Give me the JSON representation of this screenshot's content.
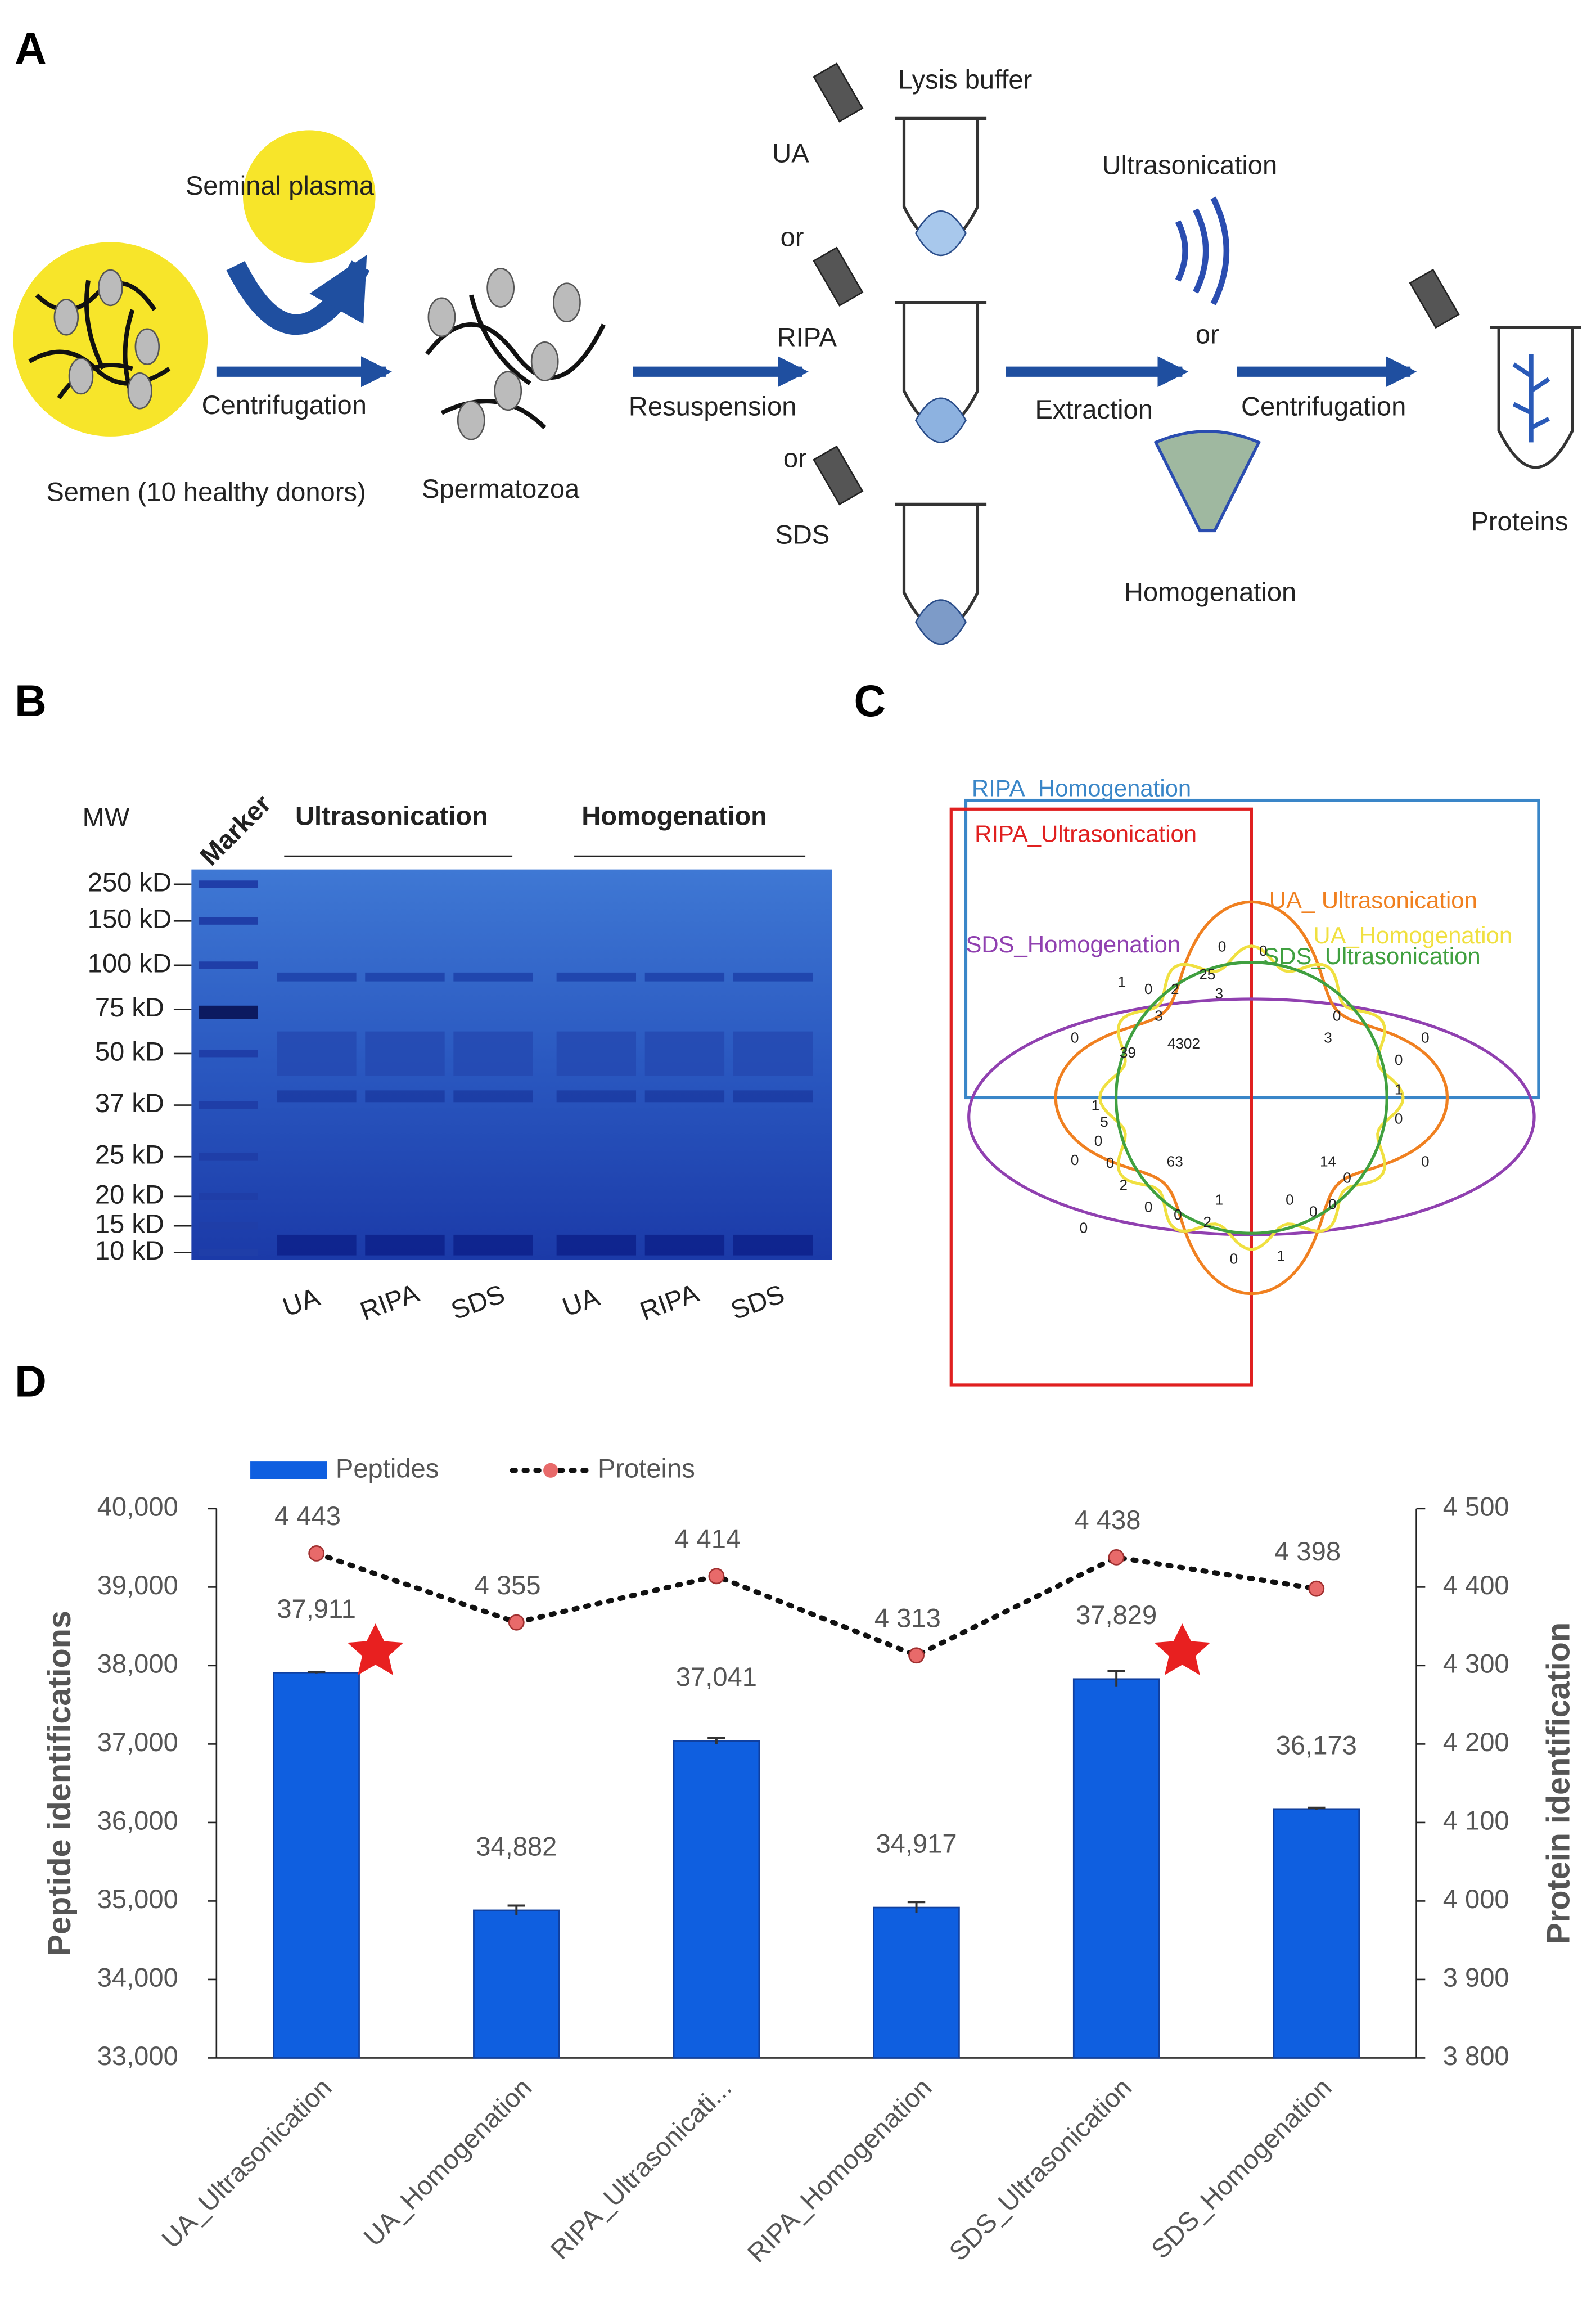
{
  "panel_a": {
    "letter": "A",
    "labels": [
      "Lysis buffer",
      "UA",
      "or",
      "RIPA",
      "or",
      "SDS",
      "Ultrasonication",
      "or",
      "Seminal plasma",
      "Centrifugation",
      "Resuspension",
      "Extraction",
      "Centrifugation",
      "Semen (10 healthy donors)",
      "Spermatozoa",
      "Homogenation",
      "Proteins"
    ]
  },
  "panel_b": {
    "letter": "B",
    "mw": "MW",
    "marker": "Marker",
    "groups": [
      "Ultrasonication",
      "Homogenation"
    ],
    "weights": [
      "250 kD",
      "150 kD",
      "100 kD",
      "75 kD",
      "50 kD",
      "37 kD",
      "25 kD",
      "20 kD",
      "15 kD",
      "10 kD"
    ],
    "lanes": [
      "UA",
      "RIPA",
      "SDS",
      "UA",
      "RIPA",
      "SDS"
    ]
  },
  "panel_c": {
    "letter": "C",
    "sets": [
      "RIPA_Homogenation",
      "RIPA_Ultrasonication",
      "UA_ Ultrasonication",
      "UA_Homogenation",
      "SDS_Ultrasonication",
      "SDS_Homogenation"
    ],
    "numbers": [
      "0",
      "0",
      "25",
      "1",
      "0",
      "2",
      "3",
      "3",
      "4302",
      "39",
      "0",
      "3",
      "0",
      "1",
      "5",
      "0",
      "0",
      "2",
      "63",
      "0",
      "14",
      "0",
      "0",
      "1",
      "0",
      "0",
      "0",
      "2",
      "1",
      "0",
      "1",
      "0",
      "0",
      "0",
      "0",
      "0",
      "0"
    ]
  },
  "panel_d": {
    "letter": "D"
  },
  "chart_data": {
    "type": "bar_line",
    "categories": [
      "UA_Ultrasonication",
      "UA_Homogenation",
      "RIPA_Ultrasonicati...",
      "RIPA_Homogenation",
      "SDS_Ultrasonication",
      "SDS_Homogenation"
    ],
    "series": [
      {
        "name": "Peptides",
        "color": "#0f5fe0",
        "values": [
          37911,
          34882,
          37041,
          34917,
          37829,
          36173
        ],
        "value_labels": [
          "37,911",
          "34,882",
          "37,041",
          "34,917",
          "37,829",
          "36,173"
        ],
        "errors": [
          10,
          60,
          40,
          70,
          100,
          15
        ]
      },
      {
        "name": "Proteins",
        "color": "#e86a6a",
        "axis": "y2",
        "values": [
          4443,
          4355,
          4414,
          4313,
          4438,
          4398
        ],
        "value_labels": [
          "4 443",
          "4 355",
          "4 414",
          "4 313",
          "4 438",
          "4 398"
        ]
      }
    ],
    "ylabel": "Peptide identifications",
    "y2label": "Protein identification",
    "ylim": [
      33000,
      40000
    ],
    "yticks": [
      {
        "value": 33000,
        "label": "33,000"
      },
      {
        "value": 34000,
        "label": "34,000"
      },
      {
        "value": 35000,
        "label": "35,000"
      },
      {
        "value": 36000,
        "label": "36,000"
      },
      {
        "value": 37000,
        "label": "37,000"
      },
      {
        "value": 38000,
        "label": "38,000"
      },
      {
        "value": 39000,
        "label": "39,000"
      },
      {
        "value": 40000,
        "label": "40,000"
      }
    ],
    "y2lim": [
      3800,
      4500
    ],
    "y2ticks": [
      {
        "value": 3800,
        "label": "3 800"
      },
      {
        "value": 3900,
        "label": "3 900"
      },
      {
        "value": 4000,
        "label": "4 000"
      },
      {
        "value": 4100,
        "label": "4 100"
      },
      {
        "value": 4200,
        "label": "4 200"
      },
      {
        "value": 4300,
        "label": "4 300"
      },
      {
        "value": 4400,
        "label": "4 400"
      },
      {
        "value": 4500,
        "label": "4 500"
      }
    ],
    "legend": "top-left"
  }
}
